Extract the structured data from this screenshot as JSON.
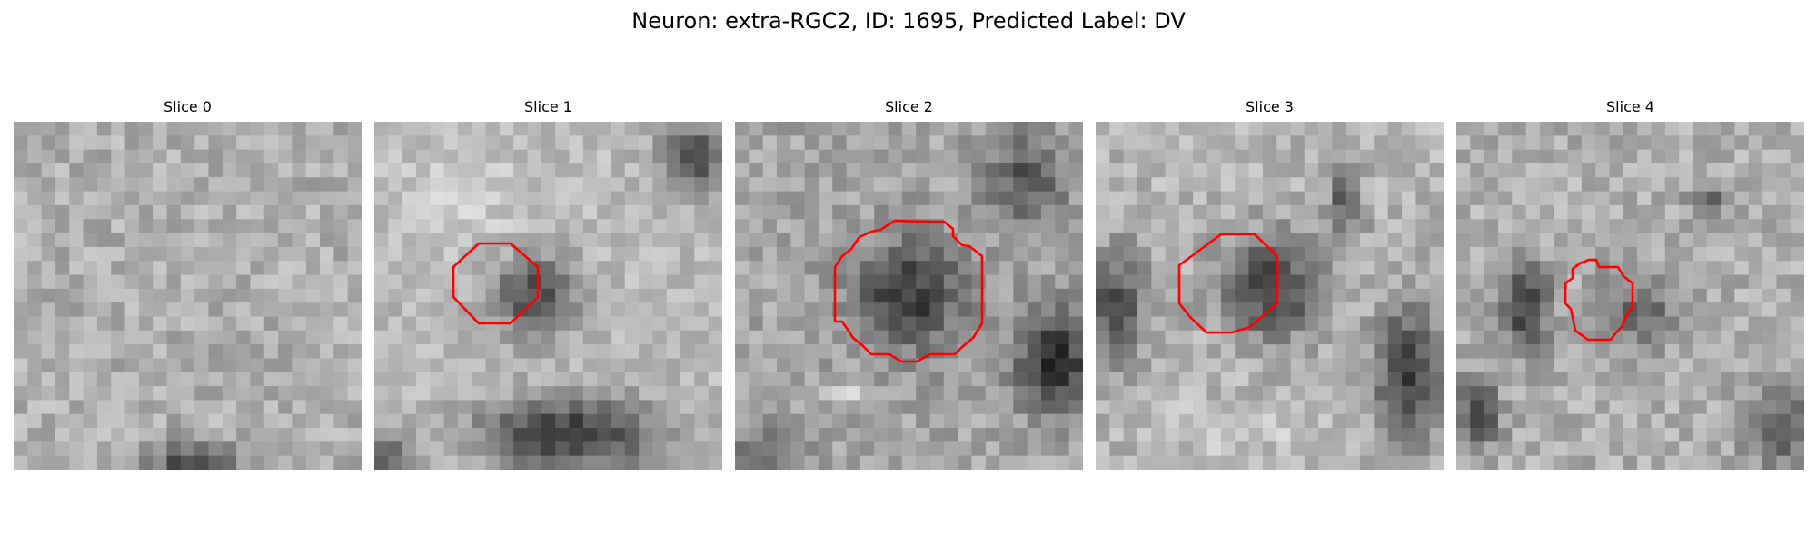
{
  "figure": {
    "title": "Neuron: extra-RGC2, ID: 1695, Predicted Label: DV"
  },
  "colors": {
    "contour": "#ff0000",
    "background": "#ffffff"
  },
  "panels": [
    {
      "title": "Slice 0",
      "has_contour": false
    },
    {
      "title": "Slice 1",
      "has_contour": true
    },
    {
      "title": "Slice 2",
      "has_contour": true
    },
    {
      "title": "Slice 3",
      "has_contour": true
    },
    {
      "title": "Slice 4",
      "has_contour": true
    }
  ]
}
